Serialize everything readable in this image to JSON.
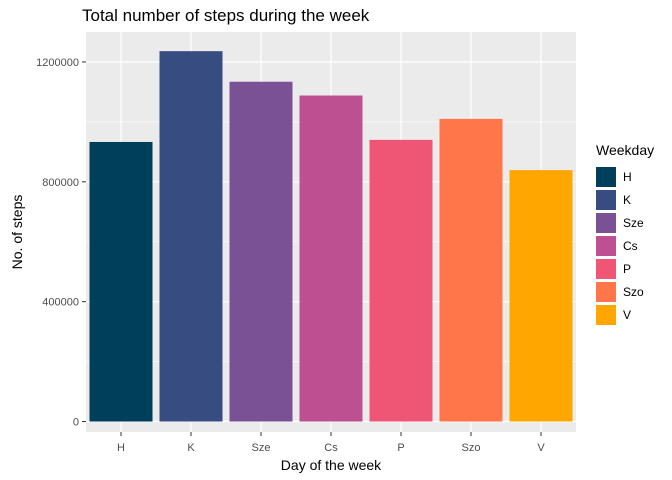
{
  "chart_data": {
    "type": "bar",
    "title": "Total number of steps during the week",
    "xlabel": "Day of the week",
    "ylabel": "No. of steps",
    "categories": [
      "H",
      "K",
      "Sze",
      "Cs",
      "P",
      "Szo",
      "V"
    ],
    "values": [
      933000,
      1236000,
      1134000,
      1088000,
      940000,
      1010000,
      839000
    ],
    "colors": [
      "#003F5C",
      "#374C80",
      "#7A5195",
      "#BC5090",
      "#EF5675",
      "#FF764A",
      "#FFA600"
    ],
    "ylim": [
      0,
      1300000
    ],
    "yticks": [
      0,
      400000,
      800000,
      1200000
    ],
    "ytick_labels": [
      "0",
      "400000",
      "800000",
      "1200000"
    ],
    "grid": true,
    "legend": {
      "title": "Weekday",
      "position": "right",
      "entries": [
        "H",
        "K",
        "Sze",
        "Cs",
        "P",
        "Szo",
        "V"
      ]
    },
    "panel_background": "#EBEBEB",
    "grid_color": "#FFFFFF"
  }
}
